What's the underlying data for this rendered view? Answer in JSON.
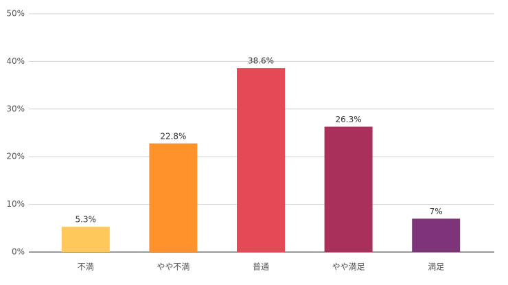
{
  "chart_data": {
    "type": "bar",
    "categories": [
      "不満",
      "やや不満",
      "普通",
      "やや満足",
      "満足"
    ],
    "values": [
      5.3,
      22.8,
      38.6,
      26.3,
      7
    ],
    "value_labels": [
      "5.3%",
      "22.8%",
      "38.6%",
      "26.3%",
      "7%"
    ],
    "colors": [
      "#ffc85a",
      "#ff922b",
      "#e44a55",
      "#a8305a",
      "#7d3478"
    ],
    "ylim": [
      0,
      50
    ],
    "yticks": [
      {
        "value": 0,
        "label": "0%"
      },
      {
        "value": 10,
        "label": "10%"
      },
      {
        "value": 20,
        "label": "20%"
      },
      {
        "value": 30,
        "label": "30%"
      },
      {
        "value": 40,
        "label": "40%"
      },
      {
        "value": 50,
        "label": "50%"
      }
    ],
    "grid": true
  }
}
